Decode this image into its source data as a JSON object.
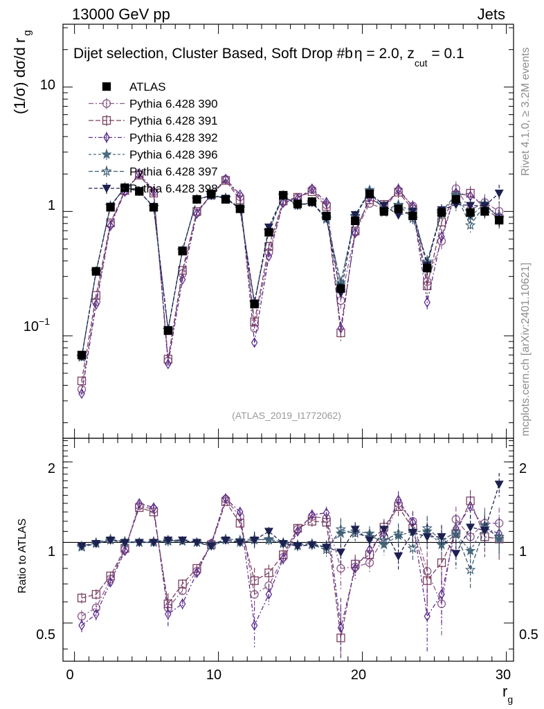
{
  "header": {
    "left": "13000 GeV pp",
    "right": "Jets",
    "title": "Dijet selection, Cluster Based, Soft Drop #b",
    "title_eta": "η = 2.0, z",
    "title_cut_sub": "cut",
    "title_tail": " = 0.1"
  },
  "side_labels": {
    "rivet": "Rivet 4.1.0, ≥ 3.2M events",
    "mcplots": "mcplots.cern.ch [arXiv:2401.10621]"
  },
  "watermark": "(ATLAS_2019_I1772062)",
  "axes": {
    "y_main_label": "(1/σ) dσ/d r",
    "y_main_label_sub": "g",
    "y_ratio_label": "Ratio to ATLAS",
    "x_label": "r",
    "x_label_sub": "g",
    "main_ticks": [
      "10",
      "1"
    ],
    "main_tick_exp_base": "10",
    "main_tick_exp": "−1",
    "ratio_ticks": [
      "2",
      "1",
      "0.5"
    ],
    "x_ticks": [
      "0",
      "10",
      "20",
      "30"
    ]
  },
  "legend": [
    {
      "label": "ATLAS",
      "color": "#000000",
      "marker": "filled-square"
    },
    {
      "label": "Pythia 6.428 390",
      "color": "#8a5a8a",
      "marker": "open-circle"
    },
    {
      "label": "Pythia 6.428 391",
      "color": "#7b3f5e",
      "marker": "open-square"
    },
    {
      "label": "Pythia 6.428 392",
      "color": "#5b2d8e",
      "marker": "open-diamond"
    },
    {
      "label": "Pythia 6.428 396",
      "color": "#4a6a7e",
      "marker": "filled-star"
    },
    {
      "label": "Pythia 6.428 397",
      "color": "#3a5a72",
      "marker": "open-star"
    },
    {
      "label": "Pythia 6.428 398",
      "color": "#1e2050",
      "marker": "filled-triangle-down"
    }
  ],
  "chart_data": {
    "type": "scatter",
    "xlim": [
      -0.8,
      30.5
    ],
    "ylim_main": [
      0.015,
      32
    ],
    "ylim_ratio": [
      0.36,
      2.45
    ],
    "x": [
      0.5,
      1.5,
      2.5,
      3.5,
      4.5,
      5.5,
      6.5,
      7.5,
      8.5,
      9.5,
      10.5,
      11.5,
      12.5,
      13.5,
      14.5,
      15.5,
      16.5,
      17.5,
      18.5,
      19.5,
      20.5,
      21.5,
      22.5,
      23.5,
      24.5,
      25.5,
      26.5,
      27.5,
      28.5,
      29.5
    ],
    "data": [
      0.07,
      0.33,
      1.08,
      1.55,
      1.45,
      1.08,
      0.11,
      0.48,
      1.25,
      1.38,
      1.25,
      1.05,
      0.18,
      0.68,
      1.35,
      1.15,
      1.2,
      0.92,
      0.24,
      0.84,
      1.38,
      1.0,
      1.05,
      0.92,
      0.35,
      0.98,
      1.25,
      0.98,
      1.0,
      0.85
    ],
    "data_err": [
      0.04,
      0.04,
      0.04,
      0.04,
      0.04,
      0.04,
      0.05,
      0.04,
      0.04,
      0.04,
      0.04,
      0.04,
      0.06,
      0.05,
      0.05,
      0.05,
      0.05,
      0.06,
      0.1,
      0.06,
      0.06,
      0.07,
      0.07,
      0.08,
      0.12,
      0.09,
      0.09,
      0.1,
      0.1,
      0.11
    ],
    "series": [
      {
        "name": "Pythia 6.428 390",
        "ratio": [
          0.53,
          0.57,
          0.73,
          0.94,
          1.37,
          1.33,
          0.57,
          0.66,
          0.78,
          0.99,
          1.45,
          1.25,
          0.64,
          0.69,
          0.88,
          1.12,
          1.25,
          1.23,
          0.8,
          0.81,
          0.84,
          1.05,
          1.4,
          1.2,
          0.78,
          0.59,
          1.22,
          1.05,
          1.18,
          1.18
        ],
        "err": [
          0.02,
          0.02,
          0.02,
          0.02,
          0.03,
          0.03,
          0.04,
          0.02,
          0.02,
          0.02,
          0.03,
          0.03,
          0.06,
          0.04,
          0.03,
          0.03,
          0.04,
          0.05,
          0.1,
          0.05,
          0.05,
          0.06,
          0.08,
          0.08,
          0.1,
          0.1,
          0.1,
          0.1,
          0.12,
          0.12
        ]
      },
      {
        "name": "Pythia 6.428 391",
        "ratio": [
          0.62,
          0.64,
          0.75,
          0.95,
          1.35,
          1.3,
          0.59,
          0.7,
          0.8,
          0.98,
          1.42,
          1.18,
          0.72,
          0.77,
          0.9,
          1.13,
          1.2,
          1.19,
          0.44,
          0.83,
          0.9,
          1.14,
          1.36,
          1.13,
          0.72,
          0.84,
          1.08,
          1.43,
          1.05,
          1.03
        ],
        "err": [
          0.02,
          0.02,
          0.02,
          0.02,
          0.03,
          0.03,
          0.04,
          0.02,
          0.02,
          0.02,
          0.03,
          0.03,
          0.06,
          0.04,
          0.03,
          0.03,
          0.04,
          0.05,
          0.1,
          0.05,
          0.05,
          0.06,
          0.08,
          0.08,
          0.1,
          0.1,
          0.1,
          0.1,
          0.12,
          0.12
        ]
      },
      {
        "name": "Pythia 6.428 392",
        "ratio": [
          0.49,
          0.54,
          0.71,
          0.93,
          1.4,
          1.35,
          0.54,
          0.59,
          0.77,
          0.99,
          1.46,
          1.3,
          0.49,
          0.64,
          0.87,
          1.1,
          1.27,
          1.29,
          0.48,
          0.8,
          0.94,
          1.08,
          1.44,
          1.19,
          0.53,
          0.64,
          1.13,
          1.36,
          1.13,
          1.08
        ],
        "err": [
          0.02,
          0.02,
          0.02,
          0.02,
          0.03,
          0.03,
          0.04,
          0.02,
          0.02,
          0.02,
          0.03,
          0.03,
          0.06,
          0.04,
          0.03,
          0.03,
          0.04,
          0.05,
          0.1,
          0.05,
          0.05,
          0.06,
          0.08,
          0.08,
          0.1,
          0.1,
          0.1,
          0.1,
          0.12,
          0.12
        ]
      },
      {
        "name": "Pythia 6.428 396",
        "ratio": [
          0.97,
          1.0,
          1.03,
          1.0,
          1.0,
          1.01,
          1.02,
          1.01,
          1.0,
          0.97,
          1.02,
          1.0,
          1.02,
          1.03,
          1.0,
          0.98,
          0.99,
          0.96,
          1.08,
          1.1,
          1.08,
          0.98,
          1.06,
          1.1,
          1.1,
          0.98,
          1.07,
          0.93,
          1.16,
          1.03
        ],
        "err": [
          0.02,
          0.02,
          0.02,
          0.02,
          0.02,
          0.02,
          0.03,
          0.02,
          0.02,
          0.02,
          0.02,
          0.02,
          0.05,
          0.03,
          0.03,
          0.03,
          0.03,
          0.04,
          0.08,
          0.05,
          0.05,
          0.06,
          0.07,
          0.07,
          0.09,
          0.08,
          0.08,
          0.09,
          0.1,
          0.1
        ]
      },
      {
        "name": "Pythia 6.428 397",
        "ratio": [
          0.96,
          0.99,
          1.02,
          1.01,
          1.0,
          1.0,
          1.01,
          1.01,
          1.0,
          0.98,
          1.03,
          1.02,
          1.03,
          1.02,
          0.99,
          0.97,
          0.98,
          0.94,
          1.12,
          1.08,
          1.05,
          1.02,
          1.08,
          0.95,
          1.13,
          1.02,
          1.09,
          0.79,
          1.13,
          1.05
        ],
        "err": [
          0.02,
          0.02,
          0.02,
          0.02,
          0.02,
          0.02,
          0.03,
          0.02,
          0.02,
          0.02,
          0.02,
          0.02,
          0.05,
          0.03,
          0.03,
          0.03,
          0.03,
          0.04,
          0.08,
          0.05,
          0.05,
          0.06,
          0.07,
          0.07,
          0.09,
          0.08,
          0.08,
          0.09,
          0.1,
          0.1
        ]
      },
      {
        "name": "Pythia 6.428 398",
        "ratio": [
          0.97,
          0.99,
          1.02,
          1.0,
          1.0,
          1.0,
          1.02,
          1.02,
          1.0,
          0.97,
          1.02,
          1.0,
          1.02,
          1.1,
          0.99,
          0.97,
          0.98,
          0.96,
          0.92,
          1.12,
          1.02,
          1.12,
          0.89,
          1.09,
          1.05,
          1.05,
          0.91,
          1.14,
          1.11,
          1.65
        ],
        "err": [
          0.02,
          0.02,
          0.02,
          0.02,
          0.02,
          0.02,
          0.03,
          0.02,
          0.02,
          0.02,
          0.02,
          0.02,
          0.05,
          0.03,
          0.03,
          0.03,
          0.03,
          0.04,
          0.08,
          0.05,
          0.05,
          0.06,
          0.07,
          0.07,
          0.09,
          0.08,
          0.08,
          0.09,
          0.1,
          0.12
        ]
      }
    ]
  }
}
